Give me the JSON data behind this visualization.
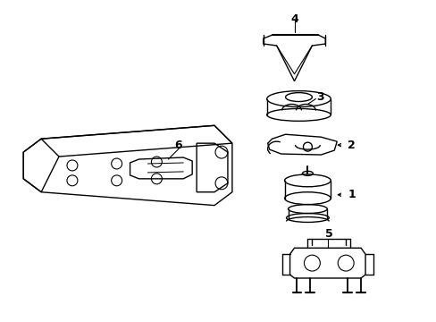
{
  "bg_color": "#ffffff",
  "line_color": "#000000",
  "line_width": 1.0,
  "fig_width": 4.89,
  "fig_height": 3.6,
  "dpi": 100,
  "label_fontsize": 9,
  "label_fontweight": "bold"
}
